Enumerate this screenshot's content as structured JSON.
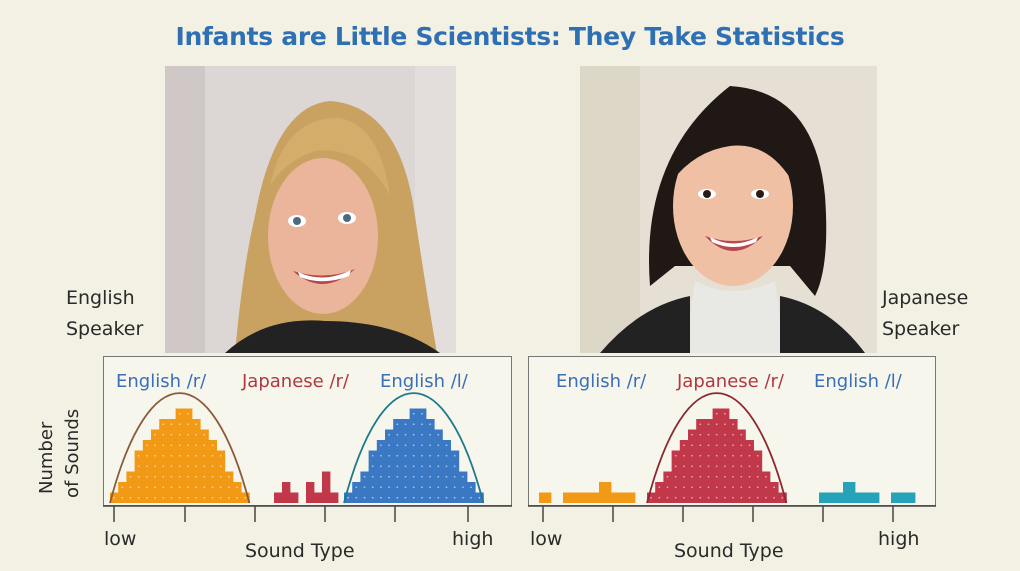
{
  "title": "Infants are Little Scientists: They Take Statistics",
  "left_speaker": "English\nSpeaker",
  "right_speaker": "Japanese\nSpeaker",
  "y_axis_label_line1": "Number",
  "y_axis_label_line2": "of Sounds",
  "colors": {
    "english_r": "#f29a16",
    "japanese_r": "#c0384a",
    "english_l": "#3b78c4",
    "english_l_right": "#26a3b8",
    "blue_text": "#3a6fb5",
    "red_text": "#b0383f"
  },
  "charts": [
    {
      "labels": [
        "English /r/",
        "Japanese /r/",
        "English /l/"
      ],
      "x_low": "low",
      "x_high": "high",
      "xlabel": "Sound Type"
    },
    {
      "labels": [
        "English /r/",
        "Japanese /r/",
        "English /l/"
      ],
      "x_low": "low",
      "x_high": "high",
      "xlabel": "Sound Type"
    }
  ],
  "chart_data": [
    {
      "type": "bar",
      "title": "",
      "xlabel": "Sound Type",
      "ylabel": "Number of Sounds",
      "x_tick_labels": [
        "low",
        "high"
      ],
      "series": [
        {
          "name": "English /r/",
          "color": "#f29a16",
          "values": [
            1,
            2,
            3,
            5,
            6,
            7,
            8,
            8,
            9,
            9,
            8,
            7,
            6,
            5,
            3,
            2,
            1
          ]
        },
        {
          "name": "Japanese /r/",
          "color": "#c0384a",
          "values": [
            1,
            2,
            1,
            0,
            2,
            1,
            3,
            1
          ]
        },
        {
          "name": "English /l/",
          "color": "#3b78c4",
          "values": [
            1,
            2,
            3,
            5,
            6,
            7,
            8,
            8,
            9,
            9,
            8,
            7,
            6,
            5,
            3,
            2,
            1
          ]
        }
      ]
    },
    {
      "type": "bar",
      "title": "",
      "xlabel": "Sound Type",
      "ylabel": "Number of Sounds",
      "x_tick_labels": [
        "low",
        "high"
      ],
      "series": [
        {
          "name": "English /r/",
          "color": "#f29a16",
          "values": [
            1,
            0,
            1,
            1,
            1,
            2,
            1,
            1
          ]
        },
        {
          "name": "Japanese /r/",
          "color": "#c0384a",
          "values": [
            1,
            2,
            3,
            5,
            6,
            7,
            8,
            8,
            9,
            9,
            8,
            7,
            6,
            5,
            3,
            2,
            1
          ]
        },
        {
          "name": "English /l/",
          "color": "#26a3b8",
          "values": [
            1,
            1,
            2,
            1,
            1,
            0,
            1,
            1
          ]
        }
      ]
    }
  ]
}
